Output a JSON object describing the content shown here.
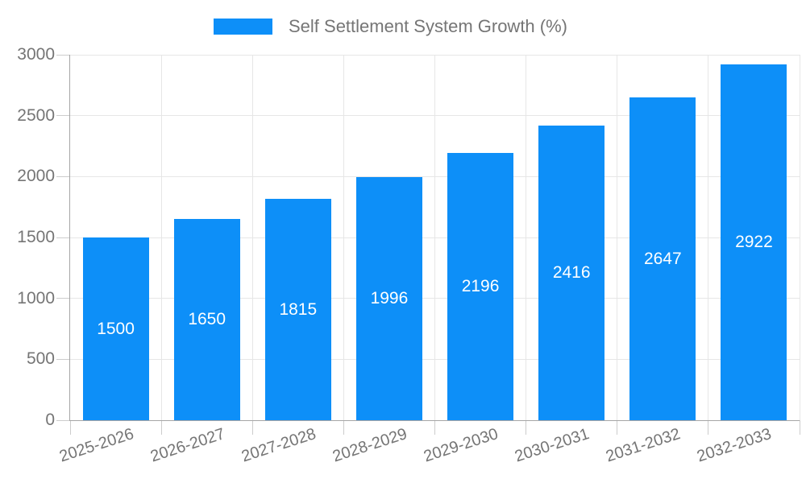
{
  "legend": {
    "label": "Self Settlement System Growth (%)"
  },
  "chart_data": {
    "type": "bar",
    "title": "Self Settlement System Growth (%)",
    "categories": [
      "2025-2026",
      "2026-2027",
      "2027-2028",
      "2028-2029",
      "2029-2030",
      "2030-2031",
      "2031-2032",
      "2032-2033"
    ],
    "values": [
      1500,
      1650,
      1815,
      1996,
      2196,
      2416,
      2647,
      2922
    ],
    "bar_value_labels": [
      "1500",
      "1650",
      "1815",
      "1996",
      "2196",
      "2416",
      "2647",
      "2922"
    ],
    "xlabel": "",
    "ylabel": "",
    "ylim": [
      0,
      3000
    ],
    "yticks": [
      0,
      500,
      1000,
      1500,
      2000,
      2500,
      3000
    ],
    "grid": true,
    "legend_position": "top",
    "value_labels_inside_bars": true,
    "colors": {
      "bar": "#0d8ff8",
      "axis_text": "#757575",
      "bar_label_text": "#ffffff",
      "gridline": "#e6e6e6",
      "axis_line": "#a6a6a6",
      "tick": "#cccccc",
      "background": "#ffffff"
    }
  }
}
